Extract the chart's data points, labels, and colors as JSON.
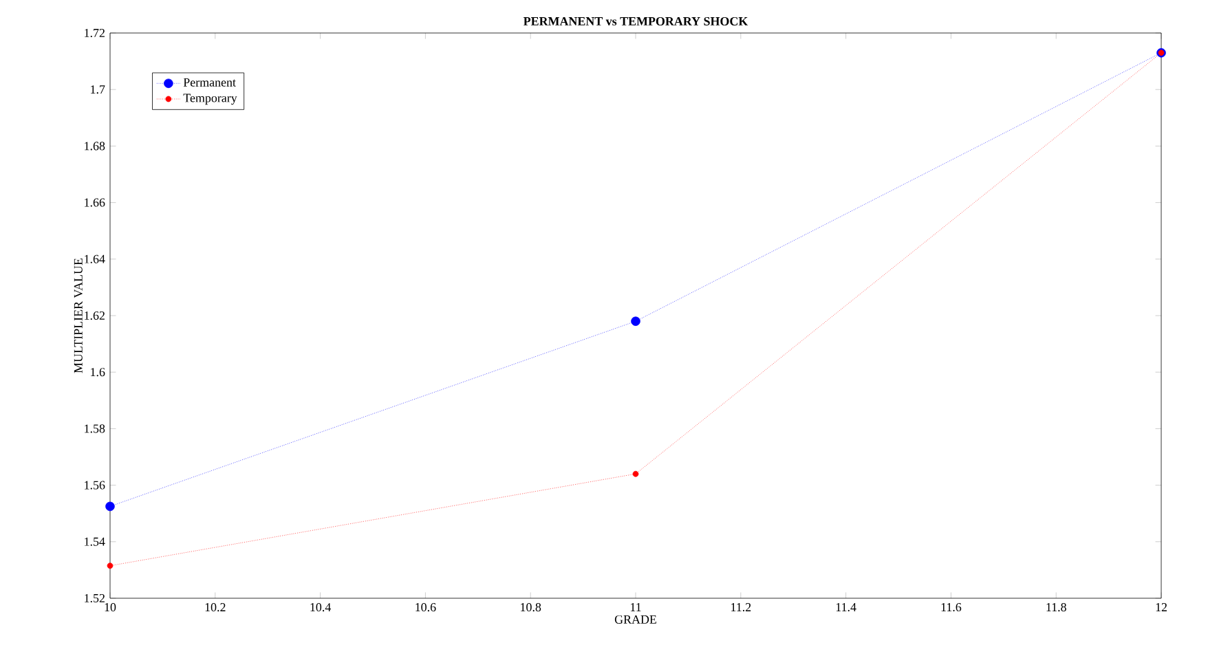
{
  "chart_data": {
    "type": "line",
    "title": "PERMANENT vs TEMPORARY SHOCK",
    "xlabel": "GRADE",
    "ylabel": "MULTIPLIER VALUE",
    "x": [
      10,
      11,
      12
    ],
    "series": [
      {
        "name": "Permanent",
        "color": "#0000ff",
        "values": [
          1.5525,
          1.618,
          1.713
        ]
      },
      {
        "name": "Temporary",
        "color": "#ff0000",
        "values": [
          1.5315,
          1.564,
          1.713
        ]
      }
    ],
    "xlim": [
      10,
      12
    ],
    "xticks": [
      10,
      10.2,
      10.4,
      10.6,
      10.8,
      11,
      11.2,
      11.4,
      11.6,
      11.8,
      12
    ],
    "ylim": [
      1.52,
      1.72
    ],
    "yticks": [
      1.52,
      1.54,
      1.56,
      1.58,
      1.6,
      1.62,
      1.64,
      1.66,
      1.68,
      1.7,
      1.72
    ],
    "grid": false,
    "legend": "top left",
    "marker": "circle",
    "line_style": "dotted"
  }
}
